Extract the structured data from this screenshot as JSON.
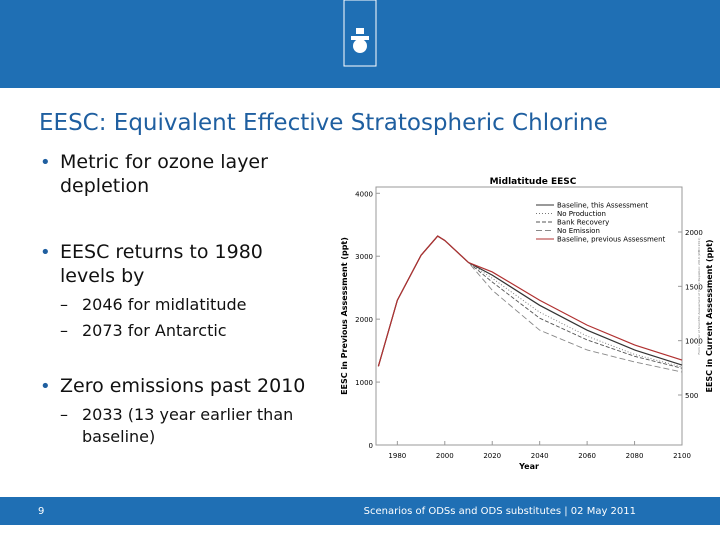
{
  "header": {
    "title": "EESC: Equivalent Effective Stratospheric Chlorine"
  },
  "bullets": [
    {
      "text": "Metric for ozone layer depletion",
      "sub": []
    },
    {
      "text": "EESC returns to 1980 levels by",
      "sub": [
        "2046 for midlatitude",
        "2073 for Antarctic"
      ]
    },
    {
      "text": "Zero emissions past 2010",
      "sub": [
        "2033 (13 year earlier than baseline)"
      ]
    }
  ],
  "footer": {
    "page": "9",
    "text": "Scenarios of ODSs and ODS substitutes | 02 May 2011"
  },
  "chart_data": {
    "type": "line",
    "title": "Midlatitude EESC",
    "xlabel": "Year",
    "ylabel": "EESC in Previous Assessment (ppt)",
    "y2label": "EESC in Current Assessment (ppt)",
    "credit": "From Chapter of Scientific Assessment of Ozone Depletion: 2010 (WMO 2011)",
    "x": [
      1972,
      1980,
      1990,
      1997,
      2000,
      2010,
      2020,
      2040,
      2060,
      2080,
      2100
    ],
    "xlim": [
      1971,
      2100
    ],
    "xticks": [
      1980,
      2000,
      2020,
      2040,
      2060,
      2080,
      2100
    ],
    "ylim": [
      0,
      4100
    ],
    "yticks": [
      0,
      1000,
      2000,
      3000,
      4000
    ],
    "y2lim": [
      40,
      2414
    ],
    "y2ticks": [
      500,
      1000,
      1500,
      2000
    ],
    "series": [
      {
        "name": "Baseline, this Assessment",
        "color": "#333333",
        "dash": "none",
        "values": [
          1250,
          2300,
          3015,
          3320,
          3250,
          2900,
          2700,
          2220,
          1825,
          1510,
          1270
        ]
      },
      {
        "name": "No Production",
        "color": "#777777",
        "dash": "1 2",
        "values": [
          1250,
          2300,
          3015,
          3320,
          3250,
          2900,
          2650,
          2110,
          1730,
          1440,
          1240
        ]
      },
      {
        "name": "Bank Recovery",
        "color": "#555555",
        "dash": "4 2",
        "values": [
          1250,
          2300,
          3015,
          3320,
          3250,
          2900,
          2590,
          2015,
          1670,
          1410,
          1220
        ]
      },
      {
        "name": "No Emission",
        "color": "#888888",
        "dash": "6 3",
        "values": [
          1250,
          2300,
          3015,
          3320,
          3250,
          2900,
          2460,
          1825,
          1510,
          1320,
          1160
        ]
      },
      {
        "name": "Baseline, previous Assessment",
        "color": "#b03030",
        "dash": "none",
        "values": [
          1250,
          2300,
          3015,
          3320,
          3250,
          2900,
          2750,
          2300,
          1905,
          1590,
          1350
        ]
      }
    ]
  }
}
